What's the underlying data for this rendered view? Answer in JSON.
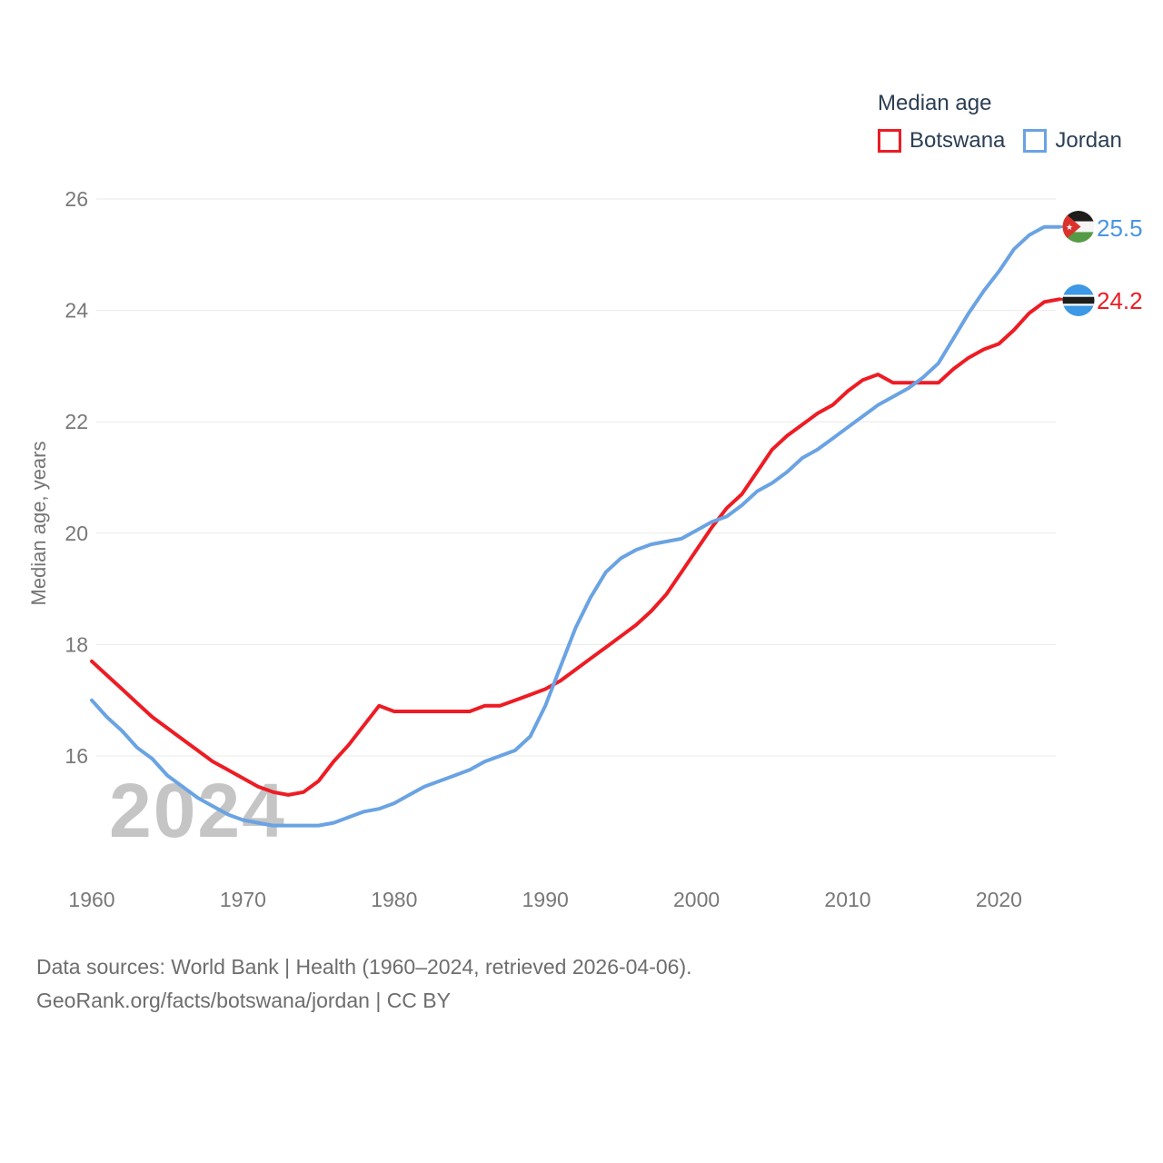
{
  "legend": {
    "title": "Median age",
    "series": [
      {
        "label": "Botswana",
        "color": "#ed1c24"
      },
      {
        "label": "Jordan",
        "color": "#6aa3e3"
      }
    ]
  },
  "y_axis": {
    "title": "Median age, years",
    "ticks": [
      16,
      18,
      20,
      22,
      24,
      26
    ]
  },
  "x_axis": {
    "ticks": [
      1960,
      1970,
      1980,
      1990,
      2000,
      2010,
      2020
    ]
  },
  "watermark": "2024",
  "end_labels": [
    {
      "series": "Jordan",
      "value": "25.5",
      "color": "#4a95e2",
      "flag": "jordan-flag-icon"
    },
    {
      "series": "Botswana",
      "value": "24.2",
      "color": "#ed1c24",
      "flag": "botswana-flag-icon"
    }
  ],
  "footer": {
    "line1": "Data sources: World Bank | Health (1960–2024, retrieved 2026-04-06).",
    "line2": "GeoRank.org/facts/botswana/jordan | CC BY"
  },
  "chart_data": {
    "type": "line",
    "title": "Median age",
    "xlabel": "",
    "ylabel": "Median age, years",
    "xlim": [
      1960,
      2024
    ],
    "ylim": [
      14.5,
      26.5
    ],
    "grid": true,
    "legend_position": "top-right",
    "x": [
      1960,
      1961,
      1962,
      1963,
      1964,
      1965,
      1966,
      1967,
      1968,
      1969,
      1970,
      1971,
      1972,
      1973,
      1974,
      1975,
      1976,
      1977,
      1978,
      1979,
      1980,
      1981,
      1982,
      1983,
      1984,
      1985,
      1986,
      1987,
      1988,
      1989,
      1990,
      1991,
      1992,
      1993,
      1994,
      1995,
      1996,
      1997,
      1998,
      1999,
      2000,
      2001,
      2002,
      2003,
      2004,
      2005,
      2006,
      2007,
      2008,
      2009,
      2010,
      2011,
      2012,
      2013,
      2014,
      2015,
      2016,
      2017,
      2018,
      2019,
      2020,
      2021,
      2022,
      2023,
      2024
    ],
    "series": [
      {
        "name": "Botswana",
        "color": "#ed1c24",
        "end_value": 24.2,
        "values": [
          17.7,
          17.45,
          17.2,
          16.95,
          16.7,
          16.5,
          16.3,
          16.1,
          15.9,
          15.75,
          15.6,
          15.45,
          15.35,
          15.3,
          15.35,
          15.55,
          15.9,
          16.2,
          16.55,
          16.9,
          16.8,
          16.8,
          16.8,
          16.8,
          16.8,
          16.8,
          16.9,
          16.9,
          17.0,
          17.1,
          17.2,
          17.35,
          17.55,
          17.75,
          17.95,
          18.15,
          18.35,
          18.6,
          18.9,
          19.3,
          19.7,
          20.1,
          20.45,
          20.7,
          21.1,
          21.5,
          21.75,
          21.95,
          22.15,
          22.3,
          22.55,
          22.75,
          22.85,
          22.7,
          22.7,
          22.7,
          22.7,
          22.95,
          23.15,
          23.3,
          23.4,
          23.65,
          23.95,
          24.15,
          24.2
        ]
      },
      {
        "name": "Jordan",
        "color": "#6aa3e3",
        "end_value": 25.5,
        "values": [
          17.0,
          16.7,
          16.45,
          16.15,
          15.95,
          15.65,
          15.45,
          15.25,
          15.1,
          14.95,
          14.85,
          14.8,
          14.75,
          14.75,
          14.75,
          14.75,
          14.8,
          14.9,
          15.0,
          15.05,
          15.15,
          15.3,
          15.45,
          15.55,
          15.65,
          15.75,
          15.9,
          16.0,
          16.1,
          16.35,
          16.9,
          17.6,
          18.3,
          18.85,
          19.3,
          19.55,
          19.7,
          19.8,
          19.85,
          19.9,
          20.05,
          20.2,
          20.3,
          20.5,
          20.75,
          20.9,
          21.1,
          21.35,
          21.5,
          21.7,
          21.9,
          22.1,
          22.3,
          22.45,
          22.6,
          22.8,
          23.05,
          23.5,
          23.95,
          24.35,
          24.7,
          25.1,
          25.35,
          25.5,
          25.5
        ]
      }
    ]
  }
}
